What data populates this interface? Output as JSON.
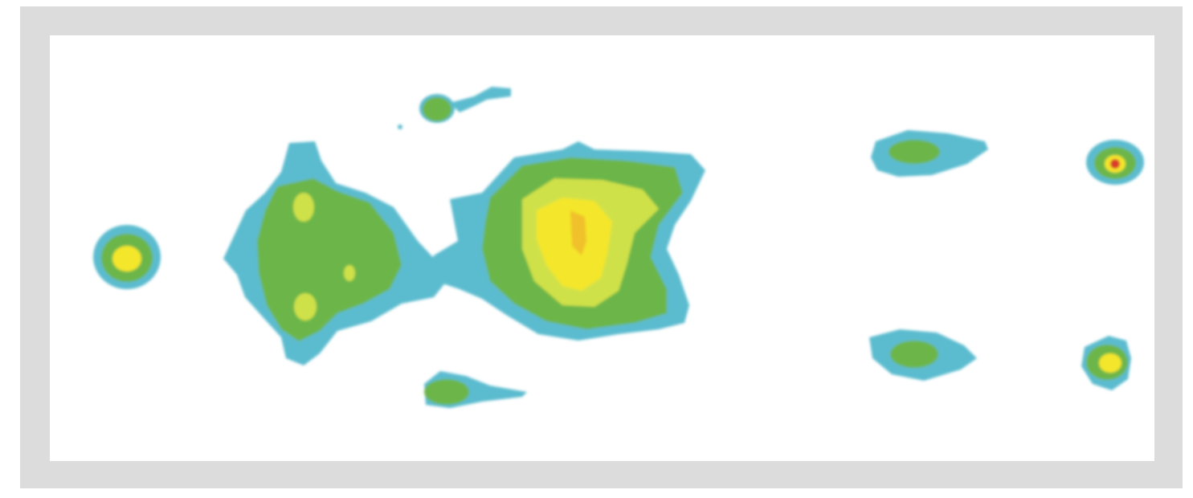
{
  "image": {
    "frame_color": "#dcdcdc",
    "field_color": "#ffffff",
    "palette": {
      "level_1": "#5bbccf",
      "level_2": "#6cb64a",
      "level_3": "#cfe14a",
      "level_4": "#f4e62a",
      "level_5": "#f0a020",
      "level_6": "#d83a2a"
    }
  }
}
